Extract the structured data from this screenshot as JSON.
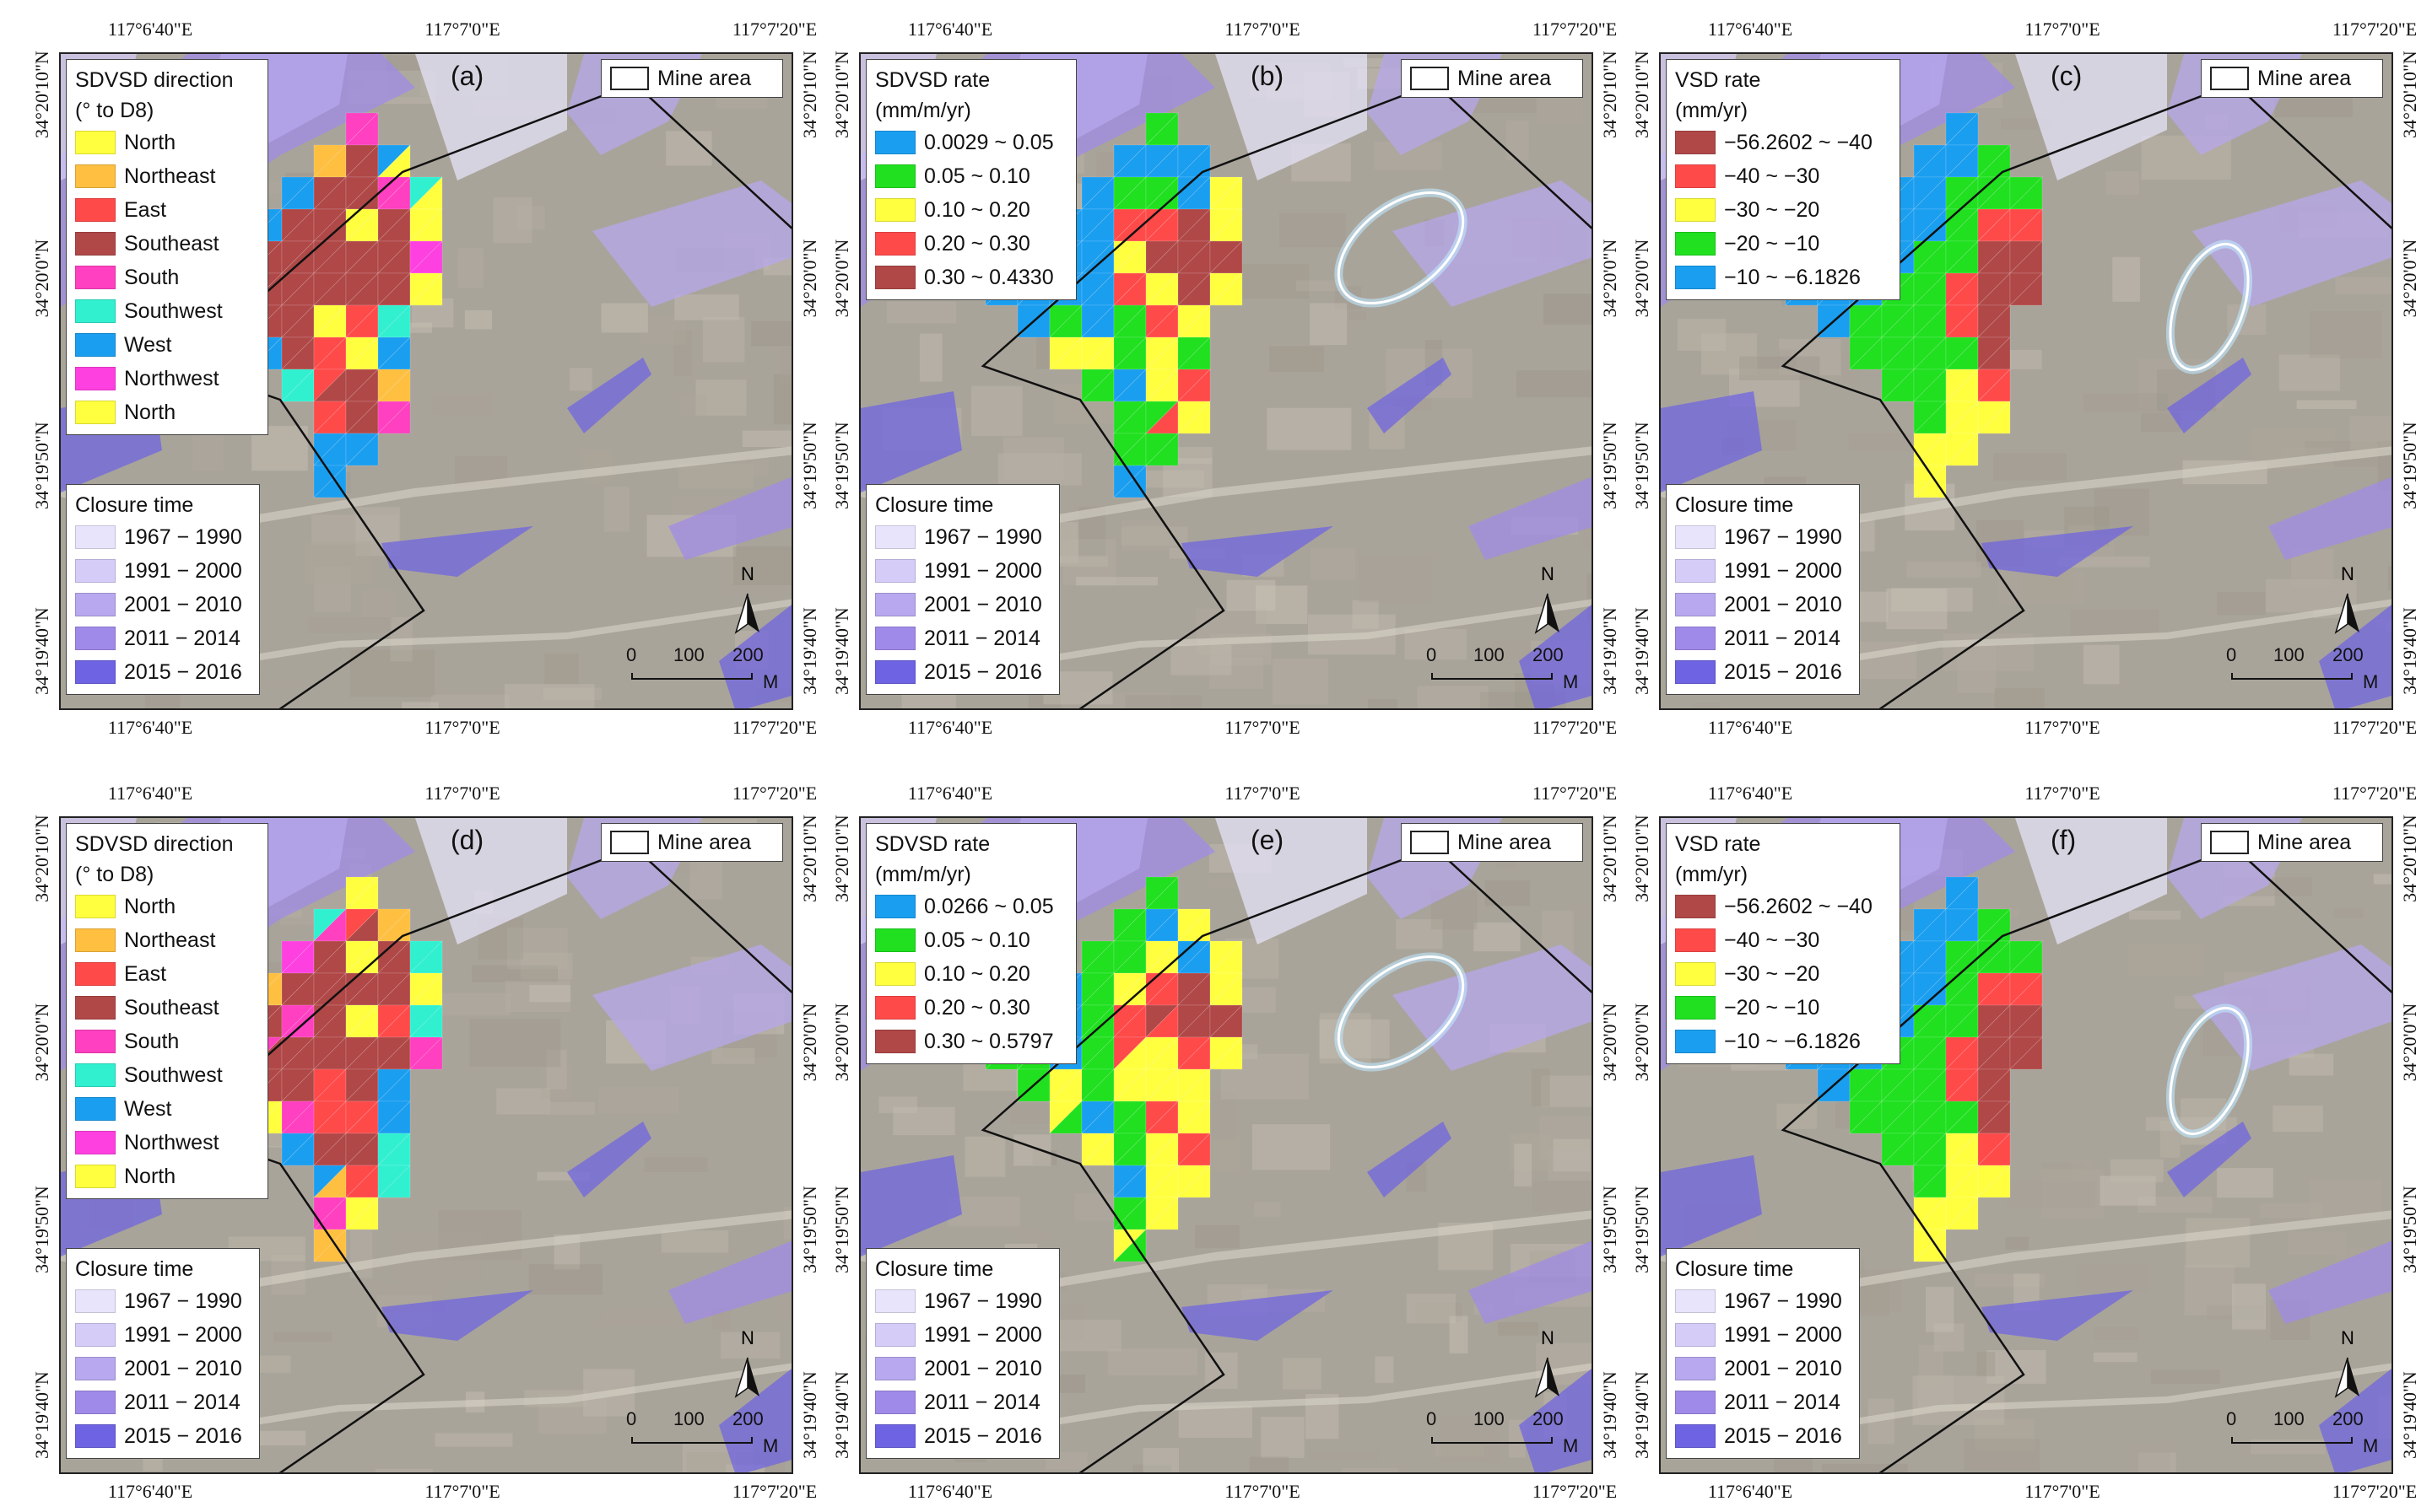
{
  "colors": {
    "background_satellite": "#a9a49a",
    "closure_1967_1990": "#e7e4fb",
    "closure_1991_2000": "#d6ccf8",
    "closure_2001_2010": "#b7a8ef",
    "closure_2011_2014": "#a08ae9",
    "closure_2015_2016": "#6e63e3",
    "north": "#ffff40",
    "northeast": "#ffbf40",
    "east": "#ff4a4a",
    "southeast": "#b04848",
    "south": "#ff40c0",
    "southwest": "#30f0d0",
    "west": "#1a9ef0",
    "northwest": "#ff40e0",
    "rate_blue": "#1a9ef0",
    "rate_green": "#20e020",
    "rate_yellow": "#ffff40",
    "rate_red": "#ff4a4a",
    "rate_darkred": "#b04848",
    "vsd_darkred": "#b04848",
    "vsd_red": "#ff4a4a",
    "vsd_yellow": "#ffff40",
    "vsd_green": "#20e020",
    "vsd_blue": "#1a9ef0"
  },
  "axes": {
    "top_ticks": [
      "117°6'40\"E",
      "117°7'0\"E",
      "117°7'20\"E"
    ],
    "bottom_ticks": [
      "117°6'40\"E",
      "117°7'0\"E",
      "117°7'20\"E"
    ],
    "left_ticks": [
      "34°20'10\"N",
      "34°20'0\"N",
      "34°19'50\"N",
      "34°19'40\"N"
    ],
    "right_ticks": [
      "34°20'10\"N",
      "34°20'0\"N",
      "34°19'50\"N",
      "34°19'40\"N"
    ]
  },
  "mine_area_label": "Mine area",
  "north_label": "N",
  "scale": {
    "labels": [
      "0",
      "100",
      "200"
    ],
    "unit": "M"
  },
  "closure": {
    "title": "Closure time",
    "items": [
      "1967 − 1990",
      "1991 − 2000",
      "2001 − 2010",
      "2011 − 2014",
      "2015 − 2016"
    ]
  },
  "panels": [
    {
      "tag": "(a)",
      "kind": "direction",
      "legend_title_1": "SDVSD direction",
      "legend_title_2": "(° to D8)",
      "items": [
        "North",
        "Northeast",
        "East",
        "Southeast",
        "South",
        "Southwest",
        "West",
        "Northwest",
        "North"
      ]
    },
    {
      "tag": "(b)",
      "kind": "sdvsd_rate",
      "legend_title_1": "SDVSD rate",
      "legend_title_2": "(mm/m/yr)",
      "items": [
        "0.0029 ~ 0.05",
        "0.05 ~ 0.10",
        "0.10 ~ 0.20",
        "0.20 ~ 0.30",
        "0.30 ~ 0.4330"
      ]
    },
    {
      "tag": "(c)",
      "kind": "vsd_rate",
      "legend_title_1": "VSD rate",
      "legend_title_2": "(mm/yr)",
      "items": [
        "−56.2602 ~ −40",
        "−40 ~ −30",
        "−30 ~ −20",
        "−20 ~ −10",
        "−10 ~ −6.1826"
      ]
    },
    {
      "tag": "(d)",
      "kind": "direction",
      "legend_title_1": "SDVSD direction",
      "legend_title_2": "(° to D8)",
      "items": [
        "North",
        "Northeast",
        "East",
        "Southeast",
        "South",
        "Southwest",
        "West",
        "Northwest",
        "North"
      ]
    },
    {
      "tag": "(e)",
      "kind": "sdvsd_rate",
      "legend_title_1": "SDVSD rate",
      "legend_title_2": "(mm/m/yr)",
      "items": [
        "0.0266 ~ 0.05",
        "0.05 ~ 0.10",
        "0.10 ~ 0.20",
        "0.20 ~ 0.30",
        "0.30 ~ 0.5797"
      ]
    },
    {
      "tag": "(f)",
      "kind": "vsd_rate",
      "legend_title_1": "VSD rate",
      "legend_title_2": "(mm/yr)",
      "items": [
        "−56.2602 ~ −40",
        "−40 ~ −30",
        "−30 ~ −20",
        "−20 ~ −10",
        "−10 ~ −6.1826"
      ]
    }
  ]
}
